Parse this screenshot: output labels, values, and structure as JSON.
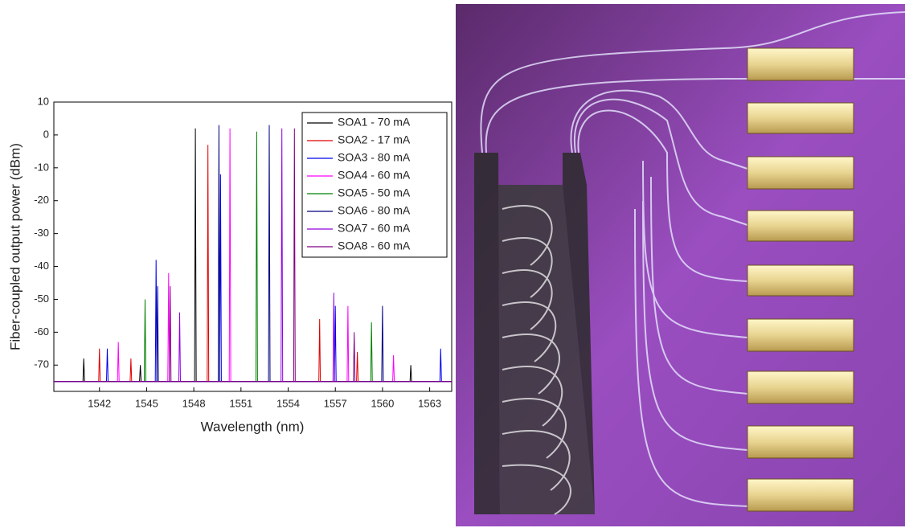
{
  "chart_data": {
    "type": "line",
    "x_label": "Wavelength (nm)",
    "y_label": "Fiber-coupled output power (dBm)",
    "xlim": [
      1539.1,
      1564.4
    ],
    "xticks": [
      1542,
      1545,
      1548,
      1551,
      1554,
      1557,
      1560,
      1563
    ],
    "ylim": [
      -78,
      10
    ],
    "yticks": [
      -70,
      -60,
      -50,
      -40,
      -30,
      -20,
      -10,
      0,
      10
    ],
    "legend": "upper right",
    "series": [
      {
        "name": "SOA1 - 70 mA",
        "color": "#000000",
        "x": [
          1539.1,
          1540.95,
          1541.0,
          1541.05,
          1544.55,
          1544.6,
          1544.65,
          1548.05,
          1548.1,
          1548.15,
          1561.75,
          1561.8,
          1561.85,
          1564.4
        ],
        "values": [
          -75,
          -75,
          -68,
          -75,
          -75,
          -70,
          -75,
          -75,
          2,
          -75,
          -75,
          -70,
          -75,
          -75
        ]
      },
      {
        "name": "SOA2 - 17 mA",
        "color": "#e00000",
        "x": [
          1539.1,
          1541.95,
          1542.0,
          1542.05,
          1543.95,
          1544.0,
          1544.05,
          1548.85,
          1548.9,
          1548.95,
          1555.95,
          1556.0,
          1556.05,
          1558.35,
          1558.4,
          1558.45,
          1564.4
        ],
        "values": [
          -75,
          -75,
          -65,
          -75,
          -75,
          -68,
          -75,
          -75,
          -3,
          -75,
          -75,
          -56,
          -75,
          -75,
          -66,
          -75,
          -75
        ]
      },
      {
        "name": "SOA3 - 80 mA",
        "color": "#0000ee",
        "x": [
          1539.1,
          1542.45,
          1542.5,
          1542.55,
          1545.55,
          1545.6,
          1545.65,
          1549.65,
          1549.7,
          1549.75,
          1556.95,
          1557.0,
          1557.05,
          1563.65,
          1563.7,
          1563.75,
          1564.4
        ],
        "values": [
          -75,
          -75,
          -65,
          -75,
          -75,
          -38,
          -75,
          -75,
          -12,
          -75,
          -75,
          -52,
          -75,
          -75,
          -65,
          -75,
          -75
        ]
      },
      {
        "name": "SOA4 - 60 mA",
        "color": "#ff00ff",
        "x": [
          1539.1,
          1543.15,
          1543.2,
          1543.25,
          1546.35,
          1546.4,
          1546.45,
          1550.25,
          1550.3,
          1550.35,
          1557.75,
          1557.8,
          1557.85,
          1560.65,
          1560.7,
          1560.75,
          1564.4
        ],
        "values": [
          -75,
          -75,
          -63,
          -75,
          -75,
          -42,
          -75,
          -75,
          2,
          -75,
          -75,
          -52,
          -75,
          -75,
          -67,
          -75,
          -75
        ]
      },
      {
        "name": "SOA5 - 50 mA",
        "color": "#008000",
        "x": [
          1539.1,
          1544.85,
          1544.9,
          1544.95,
          1551.95,
          1552.0,
          1552.05,
          1559.25,
          1559.3,
          1559.35,
          1564.4
        ],
        "values": [
          -75,
          -75,
          -50,
          -75,
          -75,
          1,
          -75,
          -75,
          -57,
          -75,
          -75
        ]
      },
      {
        "name": "SOA6 - 80 mA",
        "color": "#000080",
        "x": [
          1539.1,
          1545.65,
          1545.7,
          1545.75,
          1549.55,
          1549.6,
          1549.65,
          1552.75,
          1552.8,
          1552.85,
          1559.95,
          1560.0,
          1560.05,
          1564.4
        ],
        "values": [
          -75,
          -75,
          -46,
          -75,
          -75,
          3,
          -75,
          -75,
          3,
          -75,
          -75,
          -52,
          -75,
          -75
        ]
      },
      {
        "name": "SOA7 - 60 mA",
        "color": "#9000e0",
        "x": [
          1539.1,
          1547.05,
          1547.1,
          1547.15,
          1553.55,
          1553.6,
          1553.65,
          1556.85,
          1556.9,
          1556.95,
          1564.4
        ],
        "values": [
          -75,
          -75,
          -54,
          -75,
          -75,
          2,
          -75,
          -75,
          -48,
          -75,
          -75
        ]
      },
      {
        "name": "SOA8 - 60 mA",
        "color": "#800080",
        "x": [
          1539.1,
          1546.45,
          1546.5,
          1546.55,
          1554.35,
          1554.4,
          1554.45,
          1558.15,
          1558.2,
          1558.25,
          1564.4
        ],
        "values": [
          -75,
          -75,
          -46,
          -75,
          -75,
          2,
          -75,
          -75,
          -60,
          -75,
          -75
        ]
      }
    ]
  }
}
